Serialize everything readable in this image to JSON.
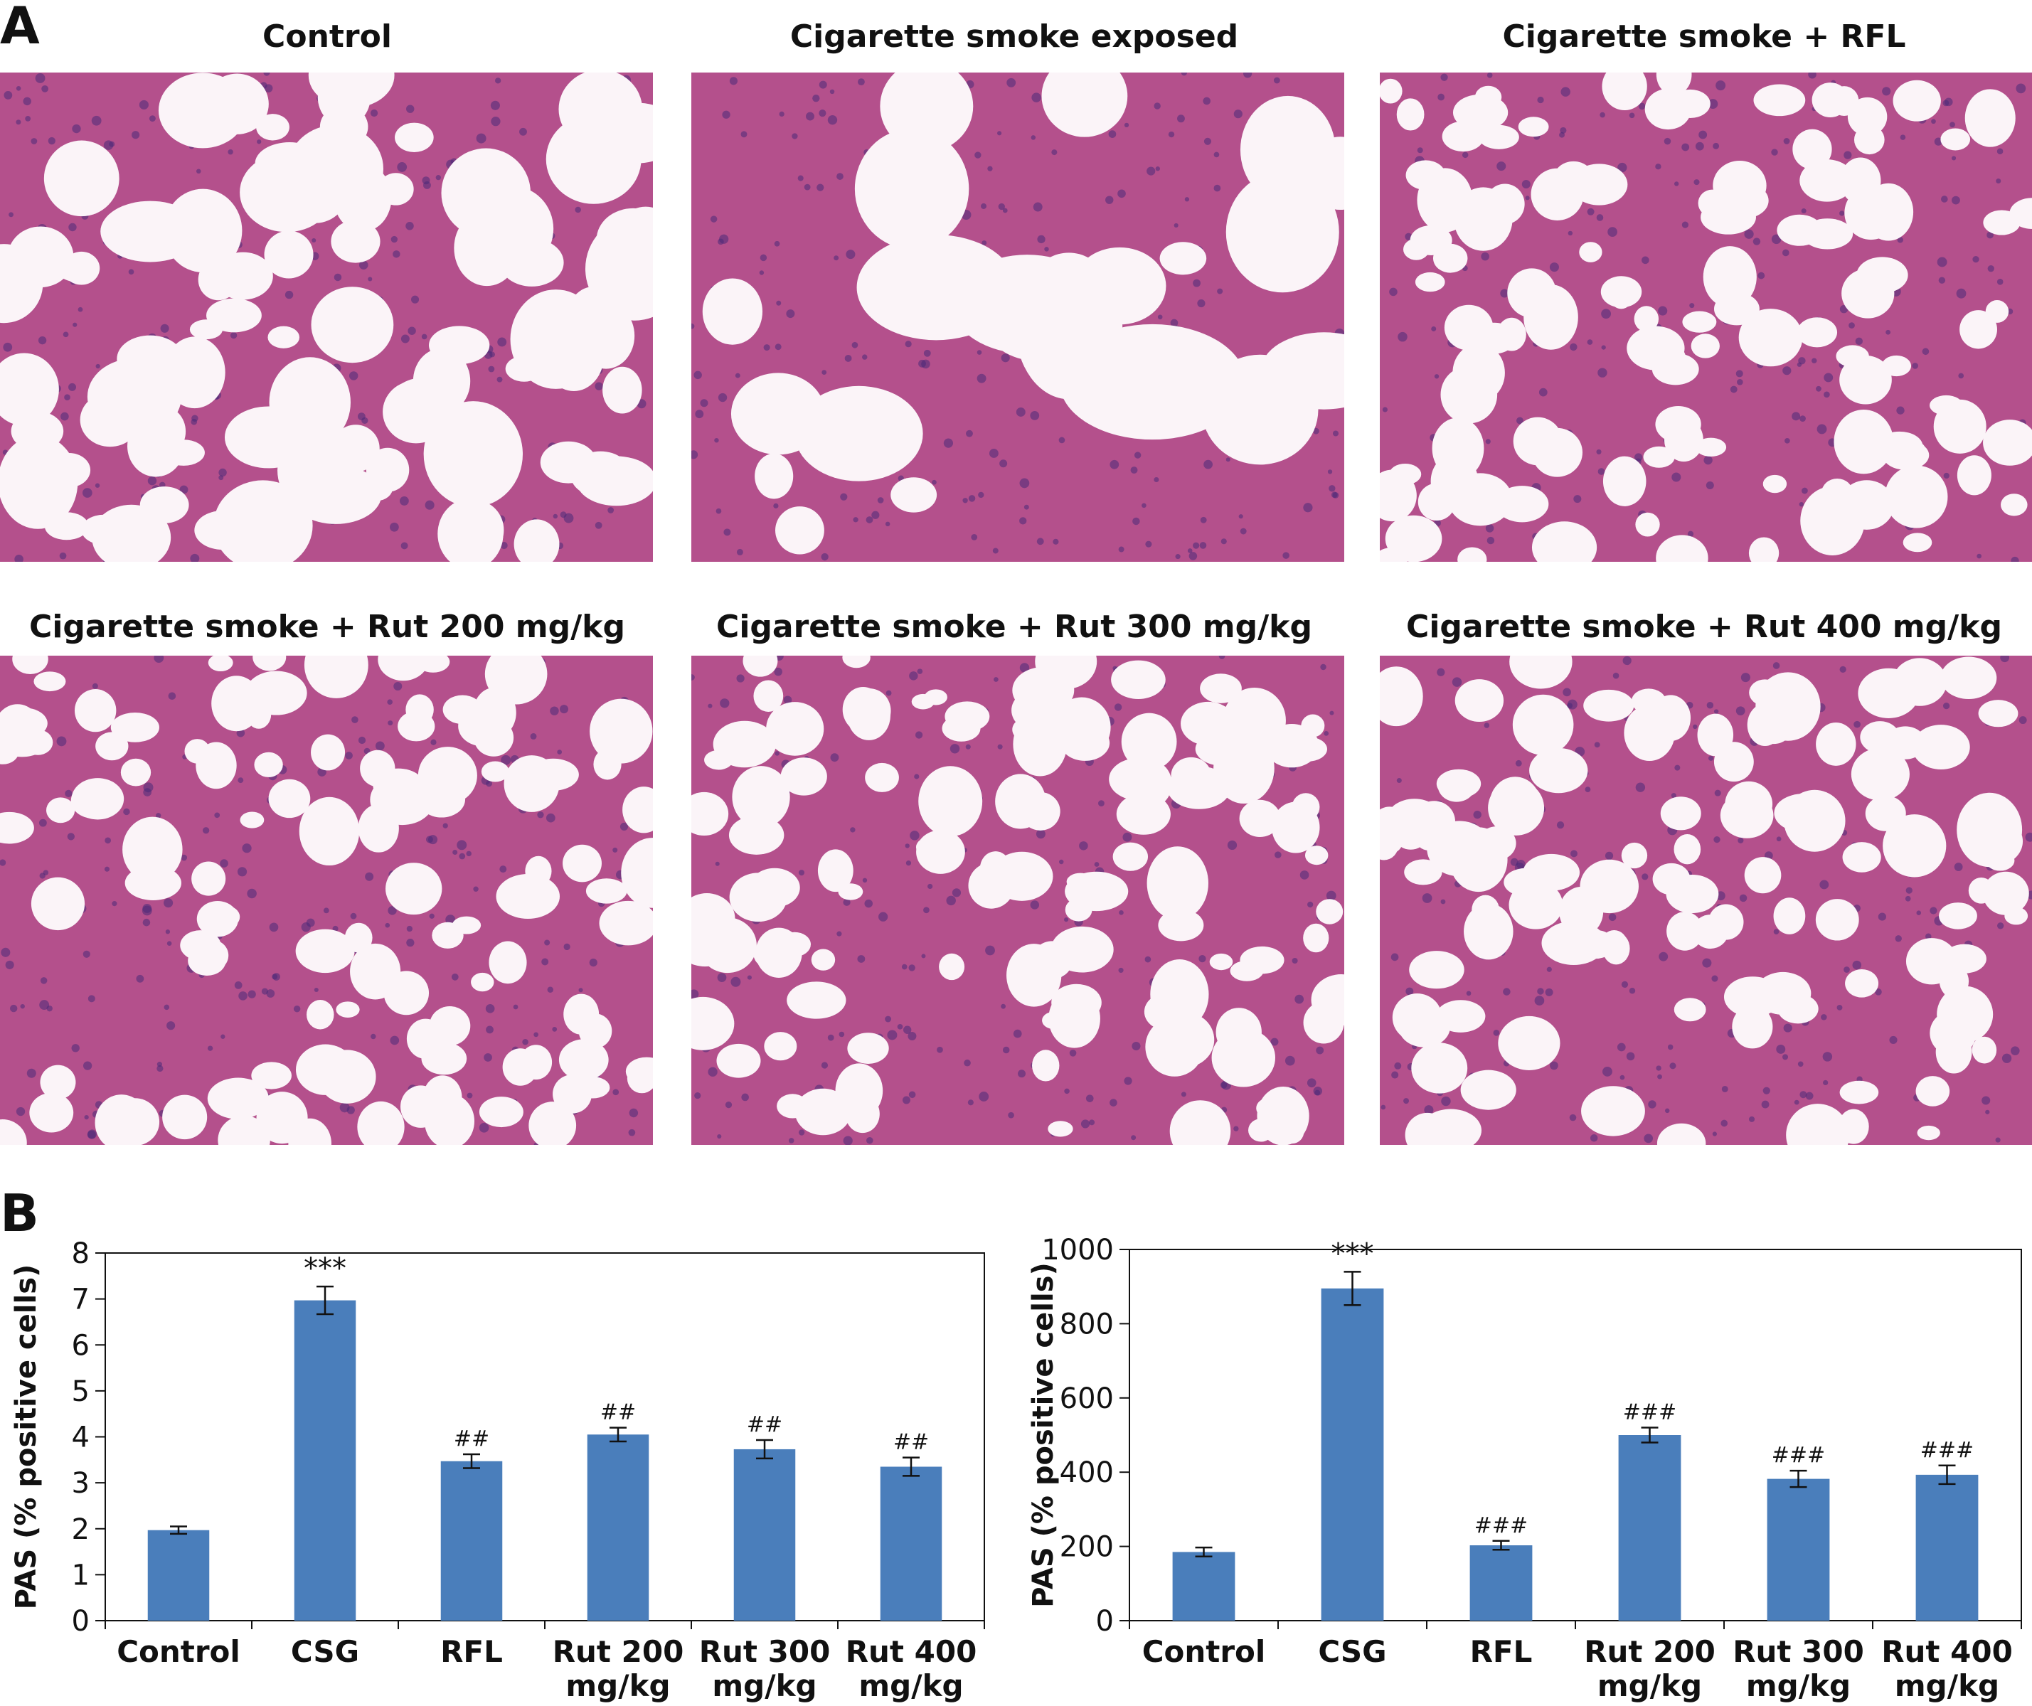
{
  "panels": {
    "a_label": "A",
    "b_label": "B"
  },
  "micrographs": [
    {
      "title": "Control",
      "density": "low"
    },
    {
      "title": "Cigarette smoke exposed",
      "density": "high"
    },
    {
      "title": "Cigarette smoke + RFL",
      "density": "medium"
    },
    {
      "title": "Cigarette smoke + Rut 200 mg/kg",
      "density": "medium"
    },
    {
      "title": "Cigarette smoke + Rut 300 mg/kg",
      "density": "medium"
    },
    {
      "title": "Cigarette smoke + Rut 400 mg/kg",
      "density": "medium"
    }
  ],
  "colors": {
    "bar": "#4a7ebb",
    "tissue": "#b4508c",
    "nuclei": "#4b2a78",
    "background": "#fbf4f8"
  },
  "chart_data": [
    {
      "type": "bar",
      "categories": [
        "Control",
        "CSG",
        "RFL",
        "Rut 200\nmg/kg",
        "Rut 300\nmg/kg",
        "Rut 400\nmg/kg"
      ],
      "values": [
        1.97,
        6.97,
        3.47,
        4.05,
        3.73,
        3.35
      ],
      "errors": [
        0.08,
        0.3,
        0.15,
        0.15,
        0.2,
        0.2
      ],
      "annotations": [
        "",
        "***",
        "##",
        "##",
        "##",
        "##"
      ],
      "ylabel": "PAS (% positive cells)",
      "ylim": [
        0,
        8
      ],
      "yticks": [
        0,
        1,
        2,
        3,
        4,
        5,
        6,
        7,
        8
      ],
      "grid": false,
      "color": "#4a7ebb"
    },
    {
      "type": "bar",
      "categories": [
        "Control",
        "CSG",
        "RFL",
        "Rut 200\nmg/kg",
        "Rut 300\nmg/kg",
        "Rut 400\nmg/kg"
      ],
      "values": [
        185,
        895,
        203,
        500,
        382,
        393
      ],
      "errors": [
        12,
        45,
        12,
        20,
        22,
        25
      ],
      "annotations": [
        "",
        "***",
        "###",
        "###",
        "###",
        "###"
      ],
      "ylabel": "PAS (% positive cells)",
      "ylim": [
        0,
        1000
      ],
      "yticks": [
        0,
        200,
        400,
        600,
        800,
        1000
      ],
      "grid": false,
      "color": "#4a7ebb"
    }
  ]
}
